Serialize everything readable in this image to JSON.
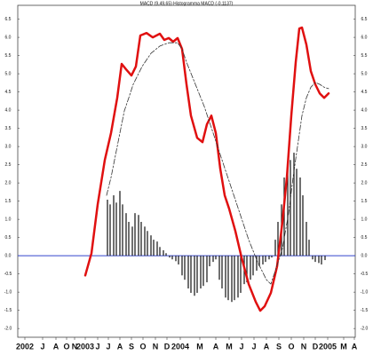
{
  "chart_data": {
    "type": "line",
    "title": "MACD (9,49,65) Histogramma MACD (-0.1137)",
    "xlim": [
      20,
      400
    ],
    "ylim": [
      -2.24,
      6.88
    ],
    "yticks": [
      {
        "value": 6.5,
        "label": "6.5"
      },
      {
        "value": 6,
        "label": "6.0"
      },
      {
        "value": 5.5,
        "label": "5.5"
      },
      {
        "value": 5,
        "label": "5.0"
      },
      {
        "value": 4.5,
        "label": "4.5"
      },
      {
        "value": 4,
        "label": "4.0"
      },
      {
        "value": 3.5,
        "label": "3.5"
      },
      {
        "value": 3,
        "label": "3.0"
      },
      {
        "value": 2.5,
        "label": "2.5"
      },
      {
        "value": 2,
        "label": "2.0"
      },
      {
        "value": 1.5,
        "label": "1.5"
      },
      {
        "value": 1,
        "label": "1.0"
      },
      {
        "value": 0.5,
        "label": "0.5"
      },
      {
        "value": 0,
        "label": "0.0"
      },
      {
        "value": -0.5,
        "label": "-0.5"
      },
      {
        "value": -1,
        "label": "-1.0"
      },
      {
        "value": -1.5,
        "label": "-1.5"
      },
      {
        "value": -2,
        "label": "-2.0"
      }
    ],
    "xticks": [
      {
        "value": 28,
        "label": "2002"
      },
      {
        "value": 48,
        "label": "J"
      },
      {
        "value": 63,
        "label": "A"
      },
      {
        "value": 75,
        "label": "O"
      },
      {
        "value": 84,
        "label": "N"
      },
      {
        "value": 96,
        "label": "2003"
      },
      {
        "value": 110,
        "label": "J"
      },
      {
        "value": 122,
        "label": "J"
      },
      {
        "value": 135,
        "label": "A"
      },
      {
        "value": 148,
        "label": "S"
      },
      {
        "value": 161,
        "label": "O"
      },
      {
        "value": 175,
        "label": "N"
      },
      {
        "value": 188,
        "label": "D"
      },
      {
        "value": 203,
        "label": "2004"
      },
      {
        "value": 225,
        "label": "M"
      },
      {
        "value": 243,
        "label": "A"
      },
      {
        "value": 258,
        "label": "M"
      },
      {
        "value": 272,
        "label": "J"
      },
      {
        "value": 286,
        "label": "J"
      },
      {
        "value": 300,
        "label": "A"
      },
      {
        "value": 314,
        "label": "S"
      },
      {
        "value": 328,
        "label": "O"
      },
      {
        "value": 342,
        "label": "N"
      },
      {
        "value": 355,
        "label": "D"
      },
      {
        "value": 369,
        "label": "2005"
      },
      {
        "value": 387,
        "label": "M"
      },
      {
        "value": 399,
        "label": "A"
      }
    ],
    "hline": {
      "value": 0,
      "color": "#3344cc"
    },
    "series": [
      {
        "kind": "bar",
        "color": "#222222",
        "x": [
          121,
          124,
          128,
          131,
          135,
          138,
          142,
          145,
          149,
          152,
          156,
          159,
          163,
          166,
          170,
          173,
          177,
          180,
          184,
          187,
          191,
          194,
          198,
          201,
          205,
          208,
          212,
          215,
          219,
          222,
          226,
          229,
          233,
          236,
          240,
          243,
          247,
          250,
          254,
          257,
          261,
          264,
          268,
          271,
          275,
          278,
          282,
          285,
          289,
          292,
          296,
          299,
          303,
          306,
          310,
          313,
          317,
          320,
          324,
          327,
          331,
          334,
          338,
          341,
          345,
          348,
          352,
          355,
          359,
          362,
          366
        ],
        "values": [
          1.54,
          1.41,
          1.66,
          1.46,
          1.78,
          1.41,
          1.17,
          0.93,
          0.8,
          1.17,
          1.12,
          0.93,
          0.8,
          0.68,
          0.56,
          0.44,
          0.39,
          0.24,
          0.15,
          0.07,
          -0.05,
          -0.1,
          -0.15,
          -0.24,
          -0.54,
          -0.66,
          -0.9,
          -1.02,
          -1.1,
          -1.02,
          -0.9,
          -0.83,
          -0.73,
          -0.29,
          -0.17,
          -0.1,
          -0.66,
          -0.9,
          -1.15,
          -1.22,
          -1.27,
          -1.22,
          -1.15,
          -1.02,
          -0.78,
          -0.73,
          -0.66,
          -0.54,
          -0.41,
          -0.29,
          -0.24,
          -0.17,
          -0.1,
          -0.05,
          0.44,
          0.93,
          1.41,
          2.15,
          2.39,
          2.63,
          2.83,
          2.39,
          2.15,
          1.66,
          0.93,
          0.44,
          -0.1,
          -0.17,
          -0.2,
          -0.24,
          -0.12
        ]
      },
      {
        "kind": "line",
        "color": "#e01010",
        "width": 2.5,
        "x": [
          96,
          103,
          110,
          118,
          125,
          132,
          137,
          142,
          148,
          153,
          158,
          165,
          172,
          180,
          185,
          190,
          195,
          200,
          205,
          210,
          215,
          222,
          228,
          233,
          238,
          243,
          248,
          253,
          258,
          265,
          272,
          280,
          288,
          293,
          298,
          305,
          312,
          318,
          323,
          328,
          333,
          337,
          340,
          345,
          350,
          355,
          360,
          365,
          370
        ],
        "values": [
          -0.54,
          0.07,
          1.41,
          2.63,
          3.37,
          4.34,
          5.27,
          5.12,
          4.95,
          5.2,
          6.05,
          6.12,
          6,
          6.1,
          5.93,
          5.98,
          5.88,
          5.98,
          5.68,
          4.71,
          3.85,
          3.24,
          3.12,
          3.61,
          3.85,
          3.37,
          2.39,
          1.66,
          1.29,
          0.68,
          -0.05,
          -0.78,
          -1.27,
          -1.51,
          -1.39,
          -1.02,
          -0.29,
          0.93,
          2.15,
          3.85,
          5.32,
          6.24,
          6.27,
          5.8,
          5.07,
          4.71,
          4.46,
          4.34,
          4.46
        ]
      },
      {
        "kind": "dashed",
        "color": "#333333",
        "width": 0.8,
        "x": [
          120,
          125,
          130,
          135,
          140,
          145,
          150,
          160,
          170,
          180,
          190,
          200,
          205,
          210,
          220,
          230,
          240,
          250,
          260,
          270,
          280,
          290,
          300,
          305,
          310,
          318,
          325,
          330,
          335,
          340,
          345,
          350,
          355,
          360,
          365,
          370
        ],
        "values": [
          1.66,
          2.15,
          2.76,
          3.37,
          3.98,
          4.34,
          4.71,
          5.2,
          5.56,
          5.76,
          5.85,
          5.85,
          5.68,
          5.32,
          4.71,
          4.1,
          3.37,
          2.63,
          1.9,
          1.17,
          0.44,
          -0.17,
          -0.66,
          -0.78,
          -0.41,
          0.2,
          1.17,
          2.15,
          3,
          3.85,
          4.34,
          4.63,
          4.76,
          4.71,
          4.63,
          4.59
        ]
      }
    ]
  }
}
